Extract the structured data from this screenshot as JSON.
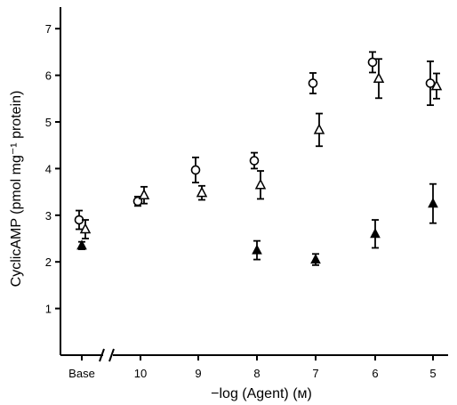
{
  "chart_data": {
    "type": "scatter",
    "title": "",
    "xlabel": "−log (Agent) (м)",
    "ylabel": "CyclicAMP (pmol mg⁻¹ protein)",
    "ylim": [
      0,
      7.5
    ],
    "yticks": [
      "1",
      "2",
      "3",
      "4",
      "5",
      "6",
      "7"
    ],
    "xcategories": [
      "Base",
      "10",
      "9",
      "8",
      "7",
      "6",
      "5"
    ],
    "axis_break": "between Base and 10",
    "series": [
      {
        "marker": "open-circle",
        "points": [
          {
            "x": "Base",
            "y": 2.9,
            "err": 0.2
          },
          {
            "x": "10",
            "y": 3.3,
            "err": 0.1
          },
          {
            "x": "9",
            "y": 3.97,
            "err": 0.27
          },
          {
            "x": "8",
            "y": 4.17,
            "err": 0.17
          },
          {
            "x": "7",
            "y": 5.83,
            "err": 0.22
          },
          {
            "x": "6",
            "y": 6.28,
            "err": 0.22
          },
          {
            "x": "5",
            "y": 5.83,
            "err": 0.47
          }
        ]
      },
      {
        "marker": "open-triangle",
        "points": [
          {
            "x": "Base",
            "y": 2.7,
            "err": 0.2
          },
          {
            "x": "10",
            "y": 3.43,
            "err": 0.18
          },
          {
            "x": "9",
            "y": 3.48,
            "err": 0.15
          },
          {
            "x": "8",
            "y": 3.65,
            "err": 0.3
          },
          {
            "x": "7",
            "y": 4.83,
            "err": 0.35
          },
          {
            "x": "6",
            "y": 5.93,
            "err": 0.42
          },
          {
            "x": "5",
            "y": 5.77,
            "err": 0.27
          }
        ]
      },
      {
        "marker": "filled-triangle",
        "points": [
          {
            "x": "Base",
            "y": 2.35,
            "err": 0.08
          },
          {
            "x": "8",
            "y": 2.25,
            "err": 0.2
          },
          {
            "x": "7",
            "y": 2.05,
            "err": 0.12
          },
          {
            "x": "6",
            "y": 2.6,
            "err": 0.3
          },
          {
            "x": "5",
            "y": 3.25,
            "err": 0.42
          }
        ]
      }
    ]
  }
}
